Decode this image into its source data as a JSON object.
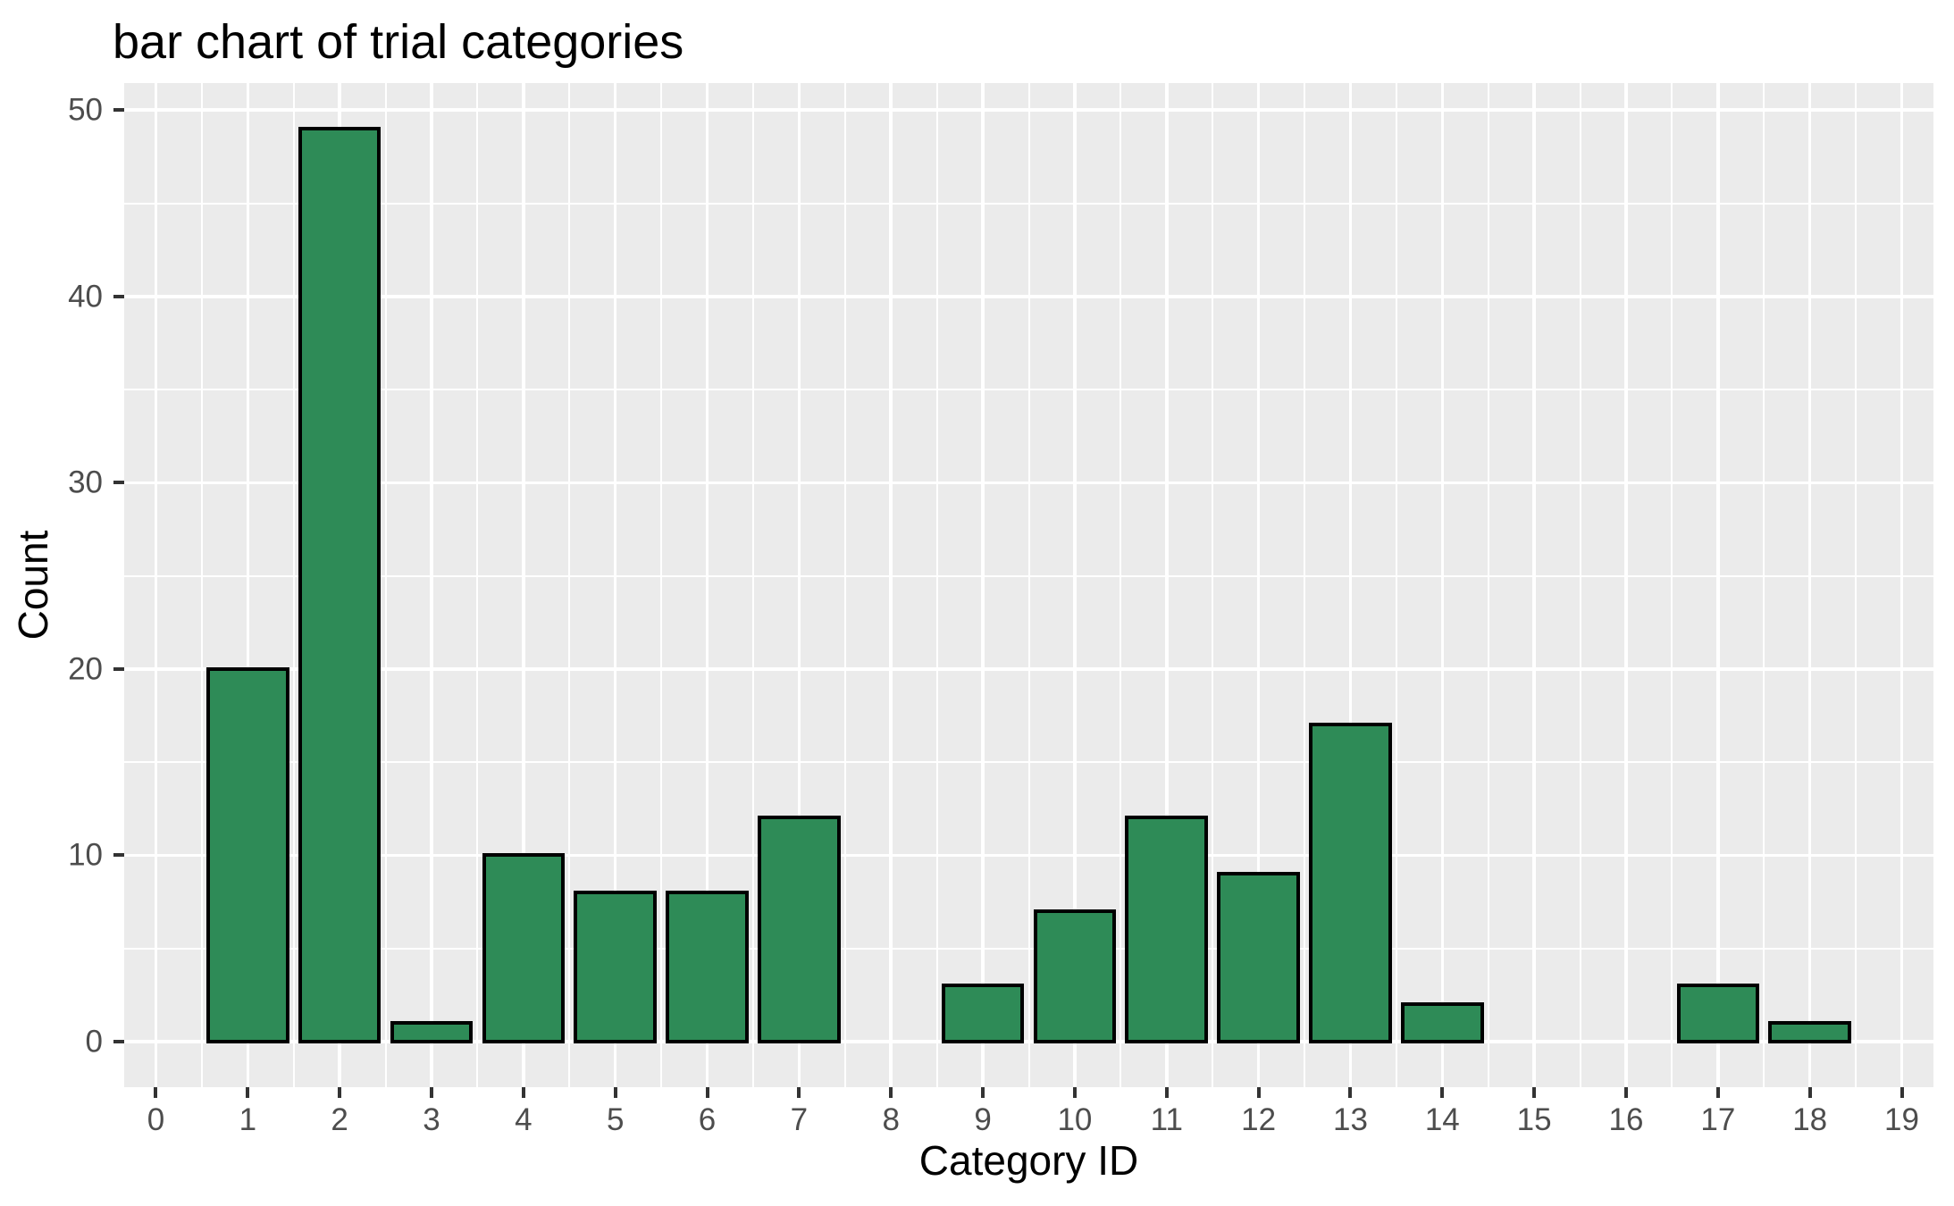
{
  "chart_data": {
    "type": "bar",
    "title": "bar chart of trial categories",
    "xlabel": "Category ID",
    "ylabel": "Count",
    "categories": [
      1,
      2,
      3,
      4,
      5,
      6,
      7,
      9,
      10,
      11,
      12,
      13,
      14,
      17,
      18
    ],
    "values": [
      20,
      49,
      1,
      10,
      8,
      8,
      12,
      3,
      7,
      12,
      9,
      17,
      2,
      3,
      1
    ],
    "x_tick_labels": [
      "0",
      "1",
      "2",
      "3",
      "4",
      "5",
      "6",
      "7",
      "8",
      "9",
      "10",
      "11",
      "12",
      "13",
      "14",
      "15",
      "16",
      "17",
      "18",
      "19"
    ],
    "x_tick_values": [
      0,
      1,
      2,
      3,
      4,
      5,
      6,
      7,
      8,
      9,
      10,
      11,
      12,
      13,
      14,
      15,
      16,
      17,
      18,
      19
    ],
    "y_tick_labels": [
      "0",
      "10",
      "20",
      "30",
      "40",
      "50"
    ],
    "y_tick_values": [
      0,
      10,
      20,
      30,
      40,
      50
    ],
    "y_minor_values": [
      5,
      15,
      25,
      35,
      45
    ],
    "xlim": [
      -0.345,
      19.345
    ],
    "ylim": [
      -2.45,
      51.45
    ],
    "bar_width": 0.9,
    "grid": "major and minor, white on gray panel",
    "legend": "none",
    "colors": {
      "bar_fill": "#2e8b57",
      "bar_stroke": "#000000",
      "panel_bg": "#ebebeb",
      "gridline": "#ffffff",
      "tick_mark": "#333333",
      "tick_label": "#4d4d4d",
      "title_text": "#000000",
      "page_bg": "#ffffff"
    }
  }
}
